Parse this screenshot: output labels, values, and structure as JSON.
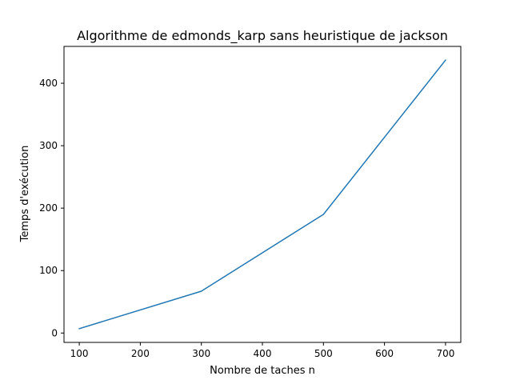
{
  "chart_data": {
    "type": "line",
    "title": "Algorithme de edmonds_karp sans heuristique de jackson",
    "xlabel": "Nombre de taches n",
    "ylabel": "Temps d'exécution",
    "x": [
      100,
      300,
      500,
      700
    ],
    "series": [
      {
        "values": [
          7,
          67,
          190,
          437
        ],
        "color": "#1f77b4"
      }
    ],
    "xlim": [
      75,
      725
    ],
    "ylim": [
      -15,
      459
    ],
    "xticks": [
      100,
      200,
      300,
      400,
      500,
      600,
      700
    ],
    "yticks": [
      0,
      100,
      200,
      300,
      400
    ],
    "grid": false,
    "legend": "none"
  }
}
